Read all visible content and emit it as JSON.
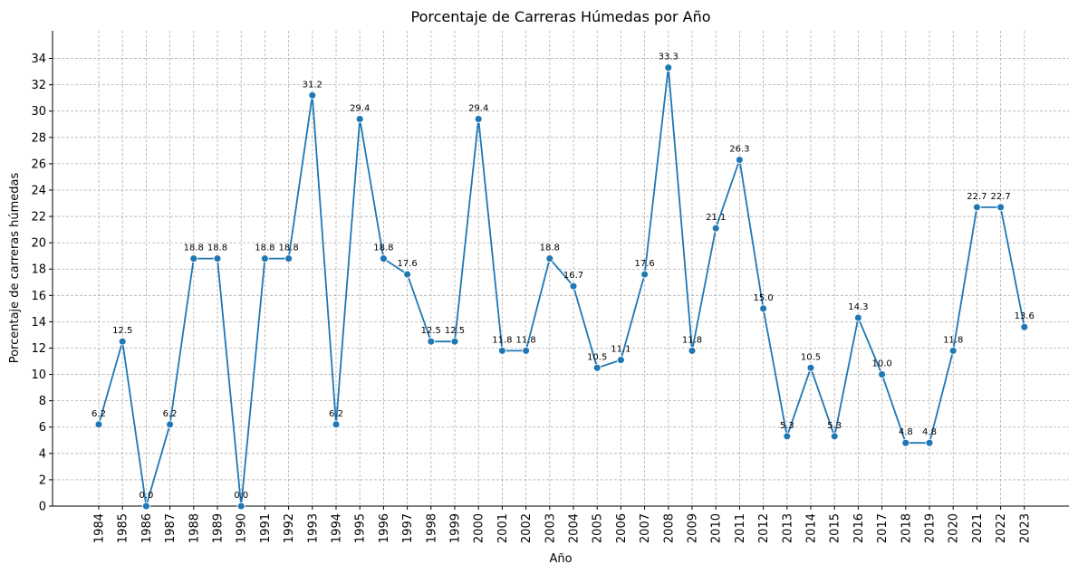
{
  "chart_data": {
    "type": "line",
    "title": "Porcentaje de Carreras Húmedas por Año",
    "xlabel": "Año",
    "ylabel": "Porcentaje de carreras húmedas",
    "x": [
      "1984",
      "1985",
      "1986",
      "1987",
      "1988",
      "1989",
      "1990",
      "1991",
      "1992",
      "1993",
      "1994",
      "1995",
      "1996",
      "1997",
      "1998",
      "1999",
      "2000",
      "2001",
      "2002",
      "2003",
      "2004",
      "2005",
      "2006",
      "2007",
      "2008",
      "2009",
      "2010",
      "2011",
      "2012",
      "2013",
      "2014",
      "2015",
      "2016",
      "2017",
      "2018",
      "2019",
      "2020",
      "2021",
      "2022",
      "2023"
    ],
    "values": [
      6.2,
      12.5,
      0.0,
      6.2,
      18.8,
      18.8,
      0.0,
      18.8,
      18.8,
      31.2,
      6.2,
      29.4,
      18.8,
      17.6,
      12.5,
      12.5,
      29.4,
      11.8,
      11.8,
      18.8,
      16.7,
      10.5,
      11.1,
      17.6,
      33.3,
      11.8,
      21.1,
      26.3,
      15.0,
      5.3,
      10.5,
      5.3,
      14.3,
      10.0,
      4.8,
      4.8,
      11.8,
      22.7,
      22.7,
      13.6
    ],
    "data_labels": [
      "6.2",
      "12.5",
      "0.0",
      "6.2",
      "18.8",
      "18.8",
      "0.0",
      "18.8",
      "18.8",
      "31.2",
      "6.2",
      "29.4",
      "18.8",
      "17.6",
      "12.5",
      "12.5",
      "29.4",
      "11.8",
      "11.8",
      "18.8",
      "16.7",
      "10.5",
      "11.1",
      "17.6",
      "33.3",
      "11.8",
      "21.1",
      "26.3",
      "15.0",
      "5.3",
      "10.5",
      "5.3",
      "14.3",
      "10.0",
      "4.8",
      "4.8",
      "11.8",
      "22.7",
      "22.7",
      "13.6"
    ],
    "y_ticks": [
      "0",
      "2",
      "4",
      "6",
      "8",
      "10",
      "12",
      "14",
      "16",
      "18",
      "20",
      "22",
      "24",
      "26",
      "28",
      "30",
      "32",
      "34"
    ],
    "ylim": [
      0,
      36
    ],
    "grid": true,
    "line_color": "#1f77b4",
    "marker": "circle"
  }
}
